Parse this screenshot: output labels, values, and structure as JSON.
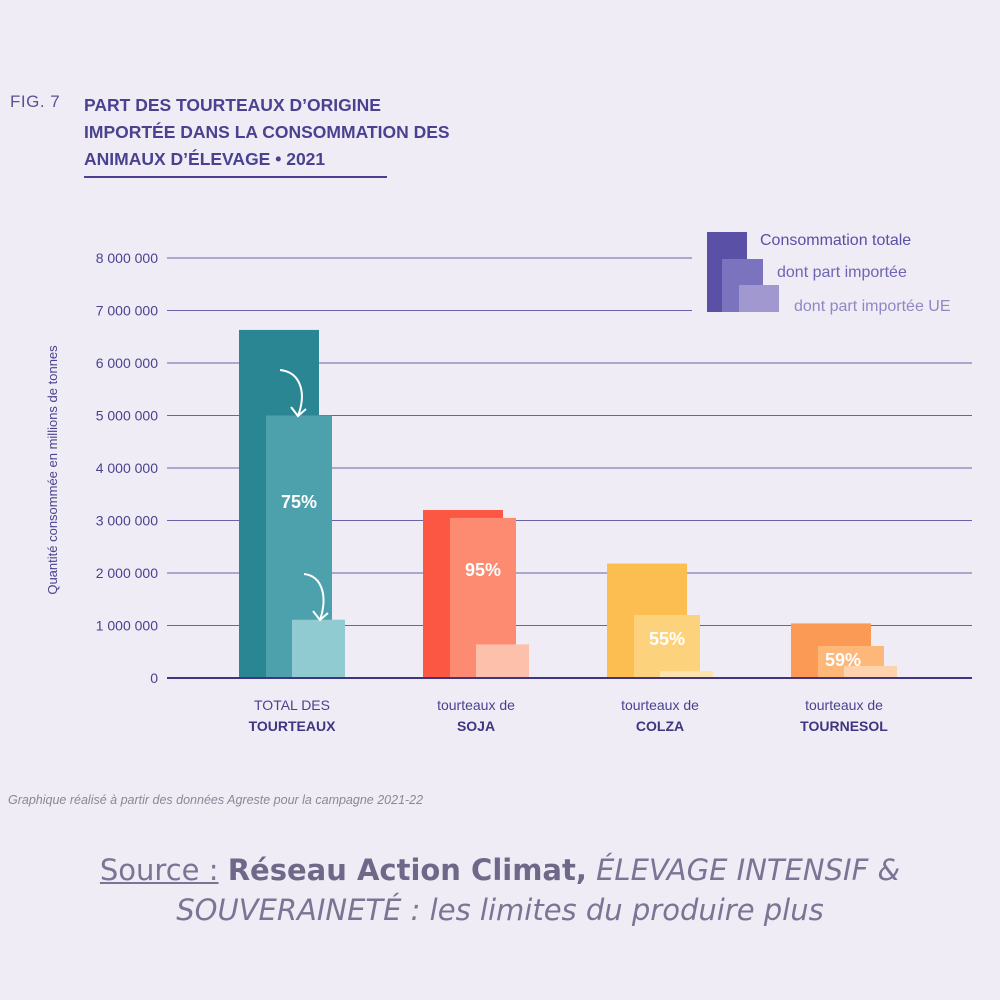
{
  "figure": {
    "label": "FIG. 7",
    "title": "PART DES TOURTEAUX D’ORIGINE IMPORTÉE DANS LA CONSOMMATION DES ANIMAUX D’ÉLEVAGE • 2021"
  },
  "note": "Graphique réalisé à partir des données Agreste pour la campagne 2021-22",
  "source": {
    "label": "Source :",
    "organization": "Réseau Action Climat,",
    "title_line1": "ÉLEVAGE INTENSIF &",
    "title_line2": "SOUVERAINETÉ : les limites du produire plus"
  },
  "chart_data": {
    "type": "bar",
    "ylabel": "Quantité consommée en millions de tonnes",
    "ylim": [
      0,
      8000000
    ],
    "yticks": [
      0,
      1000000,
      2000000,
      3000000,
      4000000,
      5000000,
      6000000,
      7000000,
      8000000
    ],
    "ytick_labels": [
      "0",
      "1 000 000",
      "2 000 000",
      "3 000 000",
      "4 000 000",
      "5 000 000",
      "6 000 000",
      "7 000 000",
      "8 000 000"
    ],
    "grid": true,
    "legend_position": "top-right",
    "legend": [
      "Consommation totale",
      "dont part importée",
      "dont part importée UE"
    ],
    "categories": [
      {
        "line1": "TOTAL DES",
        "line2": "TOURTEAUX"
      },
      {
        "line1": "tourteaux de",
        "line2": "SOJA"
      },
      {
        "line1": "tourteaux de",
        "line2": "COLZA"
      },
      {
        "line1": "tourteaux de",
        "line2": "TOURNESOL"
      }
    ],
    "series": [
      {
        "name": "Consommation totale",
        "values": [
          6630000,
          3200000,
          2180000,
          1040000
        ]
      },
      {
        "name": "dont part importée",
        "values": [
          5000000,
          3050000,
          1200000,
          610000
        ]
      },
      {
        "name": "dont part importée UE",
        "values": [
          1110000,
          640000,
          130000,
          230000
        ]
      }
    ],
    "data_labels": [
      "75%",
      "95%",
      "55%",
      "59%"
    ],
    "colors": [
      [
        "#2a8693",
        "#4ca1ad",
        "#90cbd1"
      ],
      [
        "#fb5742",
        "#fd8b72",
        "#fdc0ab"
      ],
      [
        "#fcbe50",
        "#fdd27c",
        "#fde3b0"
      ],
      [
        "#fb9a55",
        "#fcb779",
        "#fdd2ad"
      ]
    ],
    "legend_colors": [
      "#5a50a6",
      "#7b73bd",
      "#a098cf"
    ]
  }
}
